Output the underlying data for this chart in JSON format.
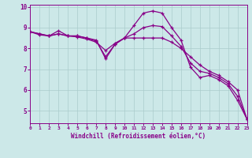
{
  "xlabel": "Windchill (Refroidissement éolien,°C)",
  "bg_color": "#cce8e8",
  "line_color": "#880088",
  "grid_color": "#aacccc",
  "hours": [
    0,
    1,
    2,
    3,
    4,
    5,
    6,
    7,
    8,
    9,
    10,
    11,
    12,
    13,
    14,
    15,
    16,
    17,
    18,
    19,
    20,
    21,
    22,
    23
  ],
  "series1": [
    8.8,
    8.7,
    8.6,
    8.85,
    8.6,
    8.6,
    8.5,
    8.35,
    7.6,
    8.2,
    8.5,
    8.5,
    8.5,
    8.5,
    8.5,
    8.3,
    8.0,
    7.6,
    7.2,
    6.9,
    6.7,
    6.4,
    6.0,
    4.6
  ],
  "series2": [
    8.8,
    8.7,
    8.6,
    8.7,
    8.6,
    8.6,
    8.5,
    8.4,
    7.5,
    8.2,
    8.5,
    9.1,
    9.7,
    9.8,
    9.7,
    9.0,
    8.4,
    7.1,
    6.6,
    6.7,
    6.5,
    6.2,
    5.5,
    4.6
  ],
  "series3": [
    8.8,
    8.65,
    8.6,
    8.7,
    8.6,
    8.55,
    8.45,
    8.3,
    7.9,
    8.25,
    8.5,
    8.7,
    9.0,
    9.1,
    9.05,
    8.6,
    8.1,
    7.3,
    6.9,
    6.8,
    6.6,
    6.3,
    5.7,
    4.6
  ],
  "xlim": [
    0,
    23
  ],
  "ylim": [
    4.4,
    10.1
  ],
  "yticks": [
    5,
    6,
    7,
    8,
    9,
    10
  ],
  "xticks": [
    0,
    1,
    2,
    3,
    4,
    5,
    6,
    7,
    8,
    9,
    10,
    11,
    12,
    13,
    14,
    15,
    16,
    17,
    18,
    19,
    20,
    21,
    22,
    23
  ]
}
